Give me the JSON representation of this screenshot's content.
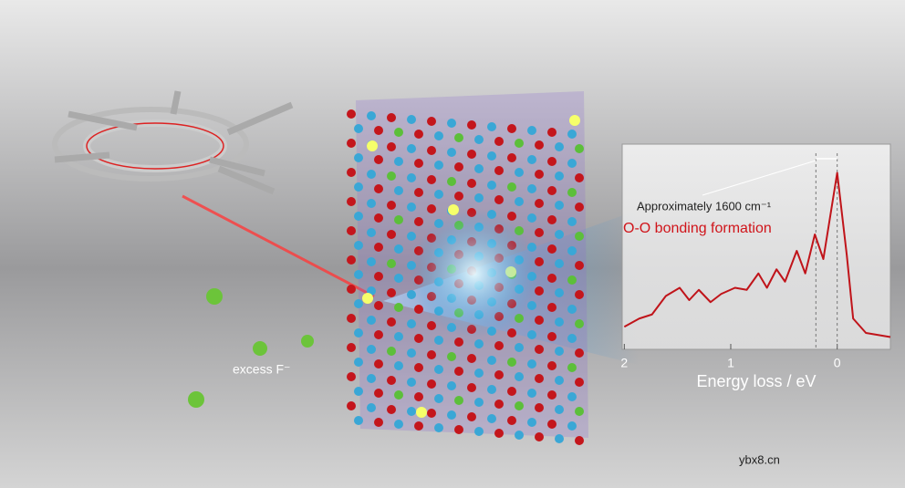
{
  "chart_data": {
    "type": "line",
    "x_label": "Energy loss  / eV",
    "annotations": [
      "Approximately 1600 cm⁻¹",
      "O-O bonding formation"
    ],
    "reference_lines": [
      0.2,
      0
    ],
    "x": [
      2.0,
      1.86,
      1.74,
      1.61,
      1.48,
      1.39,
      1.3,
      1.19,
      1.09,
      0.96,
      0.85,
      0.74,
      0.66,
      0.57,
      0.49,
      0.38,
      0.3,
      0.21,
      0.13,
      0.0,
      -0.09,
      -0.15,
      -0.27,
      -0.5
    ],
    "series": [
      {
        "color": "#c0141a",
        "values": [
          0.11,
          0.15,
          0.17,
          0.26,
          0.3,
          0.24,
          0.29,
          0.23,
          0.27,
          0.3,
          0.29,
          0.37,
          0.3,
          0.39,
          0.33,
          0.48,
          0.37,
          0.56,
          0.44,
          0.86,
          0.46,
          0.15,
          0.08,
          0.06
        ]
      }
    ],
    "xlim": [
      2.02,
      -0.5
    ],
    "xticks": [
      2,
      1,
      0
    ],
    "ylim": [
      0,
      1
    ]
  },
  "labels": {
    "ion": "excess F⁻",
    "watermark": "ybx8.cn"
  }
}
